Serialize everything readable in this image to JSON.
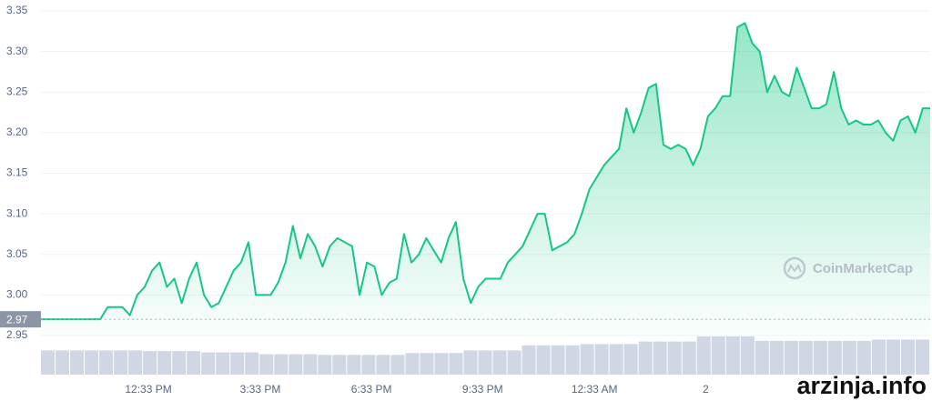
{
  "chart_data": {
    "type": "area",
    "color": "#16c784",
    "values": [
      2.97,
      2.97,
      2.97,
      2.97,
      2.97,
      2.97,
      2.97,
      2.97,
      2.97,
      2.985,
      2.985,
      2.985,
      2.975,
      3.0,
      3.01,
      3.03,
      3.04,
      3.01,
      3.02,
      2.99,
      3.02,
      3.04,
      3.0,
      2.985,
      2.99,
      3.01,
      3.03,
      3.04,
      3.065,
      3.0,
      3.0,
      3.0,
      3.015,
      3.04,
      3.085,
      3.045,
      3.075,
      3.06,
      3.035,
      3.06,
      3.07,
      3.065,
      3.06,
      3.0,
      3.04,
      3.035,
      3.0,
      3.015,
      3.02,
      3.075,
      3.04,
      3.05,
      3.07,
      3.055,
      3.04,
      3.07,
      3.09,
      3.02,
      2.99,
      3.01,
      3.02,
      3.02,
      3.02,
      3.04,
      3.05,
      3.06,
      3.08,
      3.1,
      3.1,
      3.055,
      3.06,
      3.065,
      3.075,
      3.1,
      3.13,
      3.145,
      3.16,
      3.17,
      3.18,
      3.23,
      3.2,
      3.225,
      3.255,
      3.26,
      3.185,
      3.18,
      3.185,
      3.18,
      3.16,
      3.18,
      3.22,
      3.23,
      3.245,
      3.245,
      3.33,
      3.335,
      3.31,
      3.3,
      3.25,
      3.27,
      3.25,
      3.245,
      3.28,
      3.255,
      3.23,
      3.23,
      3.235,
      3.275,
      3.23,
      3.21,
      3.215,
      3.21,
      3.21,
      3.215,
      3.2,
      3.19,
      3.215,
      3.22,
      3.2,
      3.23,
      3.23
    ],
    "xlim": [
      0,
      120
    ],
    "xticks": [
      {
        "value": 14.5,
        "label": "12:33 PM"
      },
      {
        "value": 29.6,
        "label": "3:33 PM"
      },
      {
        "value": 44.6,
        "label": "6:33 PM"
      },
      {
        "value": 59.6,
        "label": "9:33 PM"
      },
      {
        "value": 74.7,
        "label": "12:33 AM"
      },
      {
        "value": 89.7,
        "label": "2"
      }
    ],
    "ylim": [
      2.95,
      3.35
    ],
    "yticks": [
      2.95,
      {
        "value": 3.0,
        "label": "3.00"
      },
      3.05,
      {
        "value": 3.1,
        "label": "3.10"
      },
      3.15,
      {
        "value": 3.2,
        "label": "3.20"
      },
      3.25,
      {
        "value": 3.3,
        "label": "3.30"
      },
      3.35
    ],
    "grid": true,
    "current_price": 2.97,
    "volume": {
      "color": "#cfd6e4",
      "ylim": [
        0,
        100
      ],
      "values": [
        38,
        38,
        38,
        38,
        38,
        38,
        38,
        37,
        37,
        37,
        37,
        35,
        35,
        35,
        35,
        32,
        32,
        32,
        32,
        31,
        31,
        31,
        31,
        31,
        31,
        34,
        34,
        34,
        34,
        38,
        38,
        38,
        38,
        46,
        46,
        46,
        46,
        48,
        48,
        48,
        48,
        52,
        52,
        52,
        52,
        60,
        60,
        60,
        60,
        53,
        53,
        53,
        53,
        53,
        53,
        53,
        53,
        55,
        55,
        55,
        55
      ]
    },
    "watermark": "CoinMarketCap",
    "site_watermark": "arzinja.info"
  }
}
